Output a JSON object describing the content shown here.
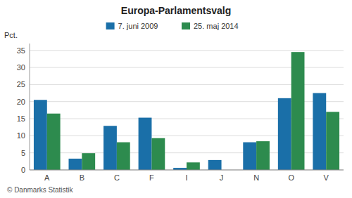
{
  "chart_data": {
    "type": "bar",
    "title": "Europa-Parlamentsvalg",
    "y_label": "Pct.",
    "annotations": [
      "© Danmarks Statistik"
    ],
    "categories": [
      "A",
      "B",
      "C",
      "F",
      "I",
      "J",
      "N",
      "O",
      "V"
    ],
    "series": [
      {
        "name": "7. juni 2009",
        "color": "#1a6fa8",
        "values": [
          20.5,
          3.3,
          12.9,
          15.3,
          0.6,
          2.9,
          8.1,
          21.0,
          22.5
        ]
      },
      {
        "name": "25. maj 2014",
        "color": "#2d8b4e",
        "values": [
          16.5,
          4.9,
          8.1,
          9.3,
          2.2,
          0.0,
          8.4,
          34.5,
          17.0
        ]
      }
    ],
    "ylim": [
      0,
      37
    ],
    "yticks": [
      0,
      5,
      10,
      15,
      20,
      25,
      30,
      35
    ],
    "grid": true,
    "legend": "top"
  }
}
